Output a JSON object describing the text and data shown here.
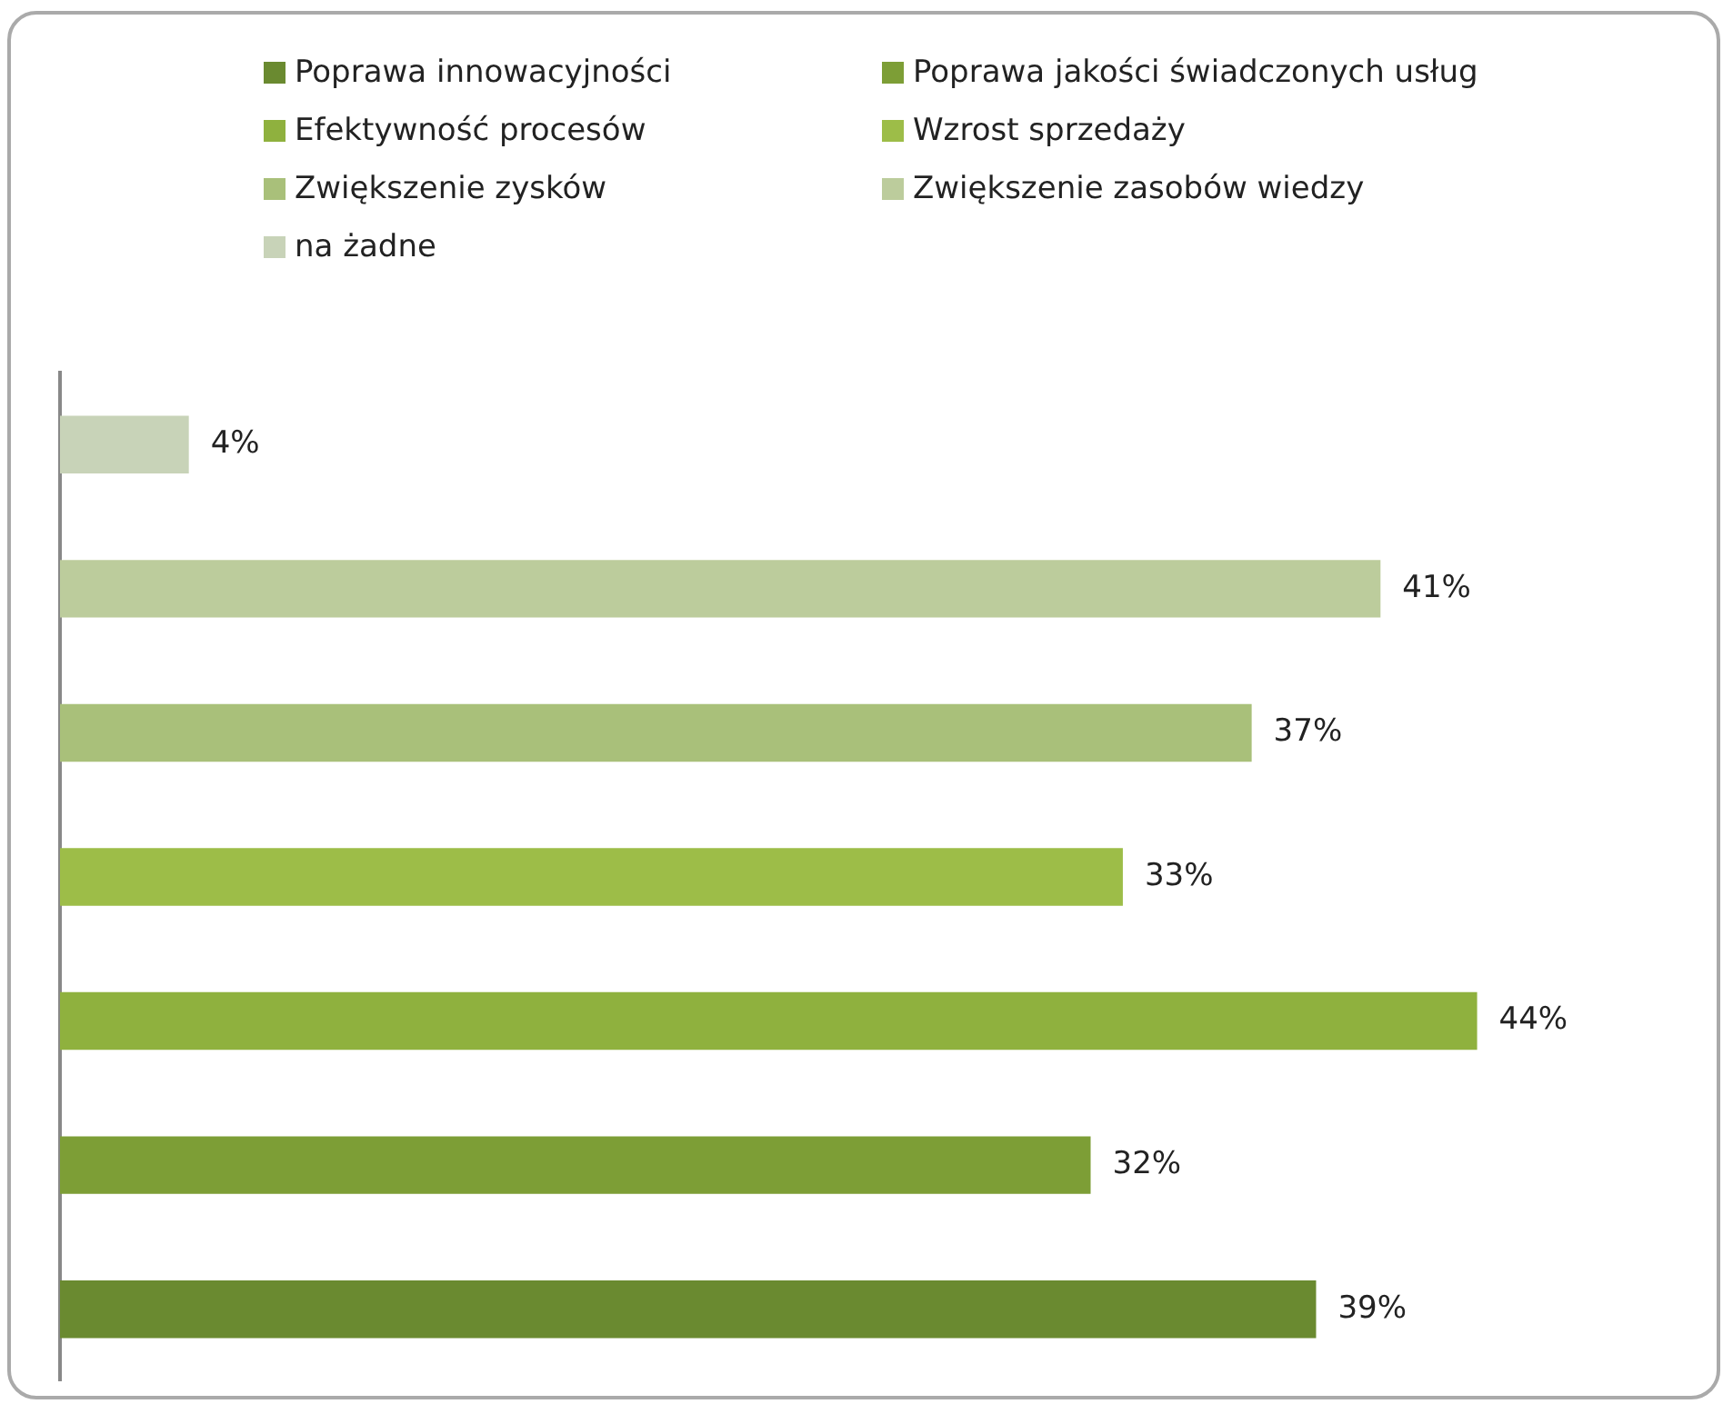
{
  "chart_data": {
    "type": "bar",
    "orientation": "horizontal",
    "stacked": true,
    "categories": [
      null,
      null,
      null,
      null,
      null,
      null,
      null
    ],
    "legend": "top",
    "grid": false,
    "tick_labels": false,
    "series": [
      {
        "name": "Poprawa innowacyjności",
        "color": "#6a8a30",
        "values": [
          null,
          null,
          null,
          null,
          null,
          null,
          39
        ],
        "value_labels": [
          null,
          null,
          null,
          null,
          null,
          null,
          "39%"
        ]
      },
      {
        "name": "Poprawa jakości świadczonych usług",
        "color": "#7d9e36",
        "values": [
          null,
          null,
          null,
          null,
          null,
          32,
          null
        ],
        "value_labels": [
          null,
          null,
          null,
          null,
          null,
          "32%",
          null
        ]
      },
      {
        "name": "Efektywność procesów",
        "color": "#8fb13e",
        "values": [
          null,
          null,
          null,
          null,
          44,
          null,
          null
        ],
        "value_labels": [
          null,
          null,
          null,
          null,
          "44%",
          null,
          null
        ]
      },
      {
        "name": "Wzrost sprzedaży",
        "color": "#9dbd48",
        "values": [
          null,
          null,
          null,
          33,
          null,
          null,
          null
        ],
        "value_labels": [
          null,
          null,
          null,
          "33%",
          null,
          null,
          null
        ]
      },
      {
        "name": "Zwiększenie zysków",
        "color": "#a9c07a",
        "values": [
          null,
          null,
          37,
          null,
          null,
          null,
          null
        ],
        "value_labels": [
          null,
          null,
          "37%",
          null,
          null,
          null,
          null
        ]
      },
      {
        "name": "Zwiększenie zasobów wiedzy",
        "color": "#bccc9c",
        "values": [
          null,
          41,
          null,
          null,
          null,
          null,
          null
        ],
        "value_labels": [
          null,
          "41%",
          null,
          null,
          null,
          null,
          null
        ]
      },
      {
        "name": "na żadne",
        "color": "#c8d3b8",
        "values": [
          4,
          null,
          null,
          null,
          null,
          null,
          null
        ],
        "value_labels": [
          "4%",
          null,
          null,
          null,
          null,
          null,
          null
        ]
      }
    ]
  }
}
